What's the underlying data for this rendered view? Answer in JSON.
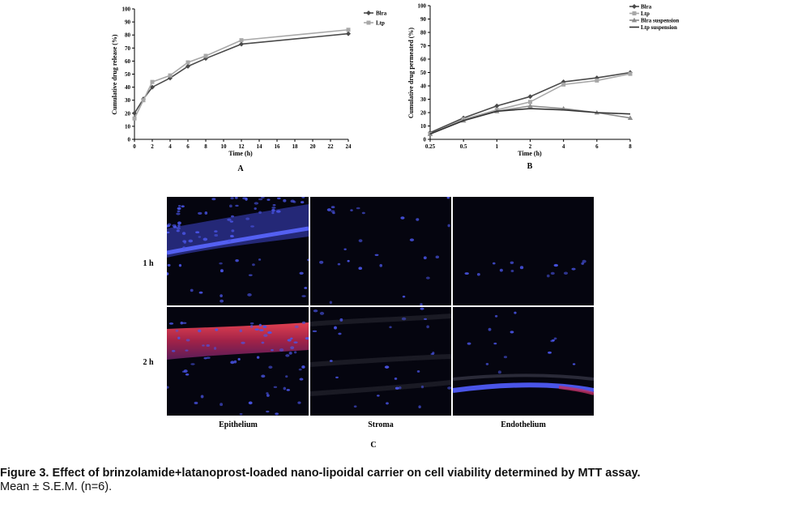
{
  "chart_data": [
    {
      "type": "line",
      "panel_label": "A",
      "xlabel": "Time (h)",
      "ylabel": "Cumulative drug release (%)",
      "x": [
        0,
        1,
        2,
        4,
        6,
        8,
        12,
        24
      ],
      "xticks": [
        0,
        2,
        4,
        6,
        8,
        10,
        12,
        14,
        16,
        18,
        20,
        22,
        24
      ],
      "yticks": [
        0,
        10,
        20,
        30,
        40,
        50,
        60,
        70,
        80,
        90,
        100
      ],
      "xlim": [
        0,
        24
      ],
      "ylim": [
        0,
        100
      ],
      "legend_position": "top-right",
      "grid": false,
      "series": [
        {
          "name": "Blra",
          "marker": "diamond",
          "color": "#4a4a4a",
          "values": [
            20,
            31,
            40,
            47,
            56,
            62,
            73,
            81
          ]
        },
        {
          "name": "Ltp",
          "marker": "square",
          "color": "#a8a8a8",
          "values": [
            16,
            30,
            44,
            49,
            59,
            64,
            76,
            84
          ]
        }
      ]
    },
    {
      "type": "line",
      "panel_label": "B",
      "xlabel": "Time (h)",
      "ylabel": "Cumulative drug permeated (%)",
      "categories": [
        "0.25",
        "0.5",
        "1",
        "2",
        "4",
        "6",
        "8"
      ],
      "yticks": [
        0,
        10,
        20,
        30,
        40,
        50,
        60,
        70,
        80,
        90,
        100
      ],
      "ylim": [
        0,
        100
      ],
      "legend_position": "top-right",
      "grid": false,
      "series": [
        {
          "name": "Blra",
          "marker": "diamond",
          "color": "#4a4a4a",
          "values": [
            5,
            16,
            25,
            32,
            43,
            46,
            50
          ]
        },
        {
          "name": "Ltp",
          "marker": "square",
          "color": "#a8a8a8",
          "values": [
            4,
            15,
            22,
            28,
            41,
            44,
            49
          ]
        },
        {
          "name": "Blra suspension",
          "marker": "triangle",
          "color": "#8c8c8c",
          "values": [
            4,
            14,
            21,
            25,
            23,
            20,
            16
          ]
        },
        {
          "name": "Ltp suspension",
          "marker": "none",
          "color": "#333333",
          "values": [
            4,
            14,
            21,
            23,
            22,
            20,
            19
          ]
        }
      ]
    }
  ],
  "panel_c": {
    "panel_label": "C",
    "row_labels": [
      "1 h",
      "2 h"
    ],
    "column_labels": [
      "Epithelium",
      "Stroma",
      "Endothelium"
    ]
  },
  "caption": {
    "title": "Figure 3. Effect of brinzolamide+latanoprost-loaded nano-lipoidal carrier on cell viability determined by MTT assay.",
    "note": "Mean ± S.E.M. (n=6)."
  },
  "colors": {
    "nucleus": "#4a55e8",
    "membrane_red": "#d8303a",
    "background": "#05050f"
  }
}
